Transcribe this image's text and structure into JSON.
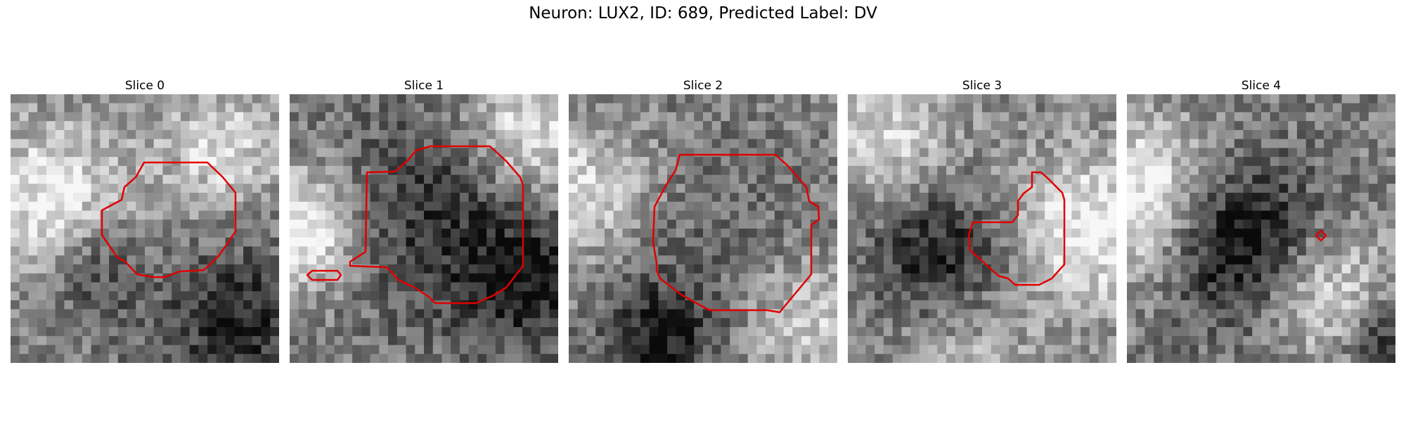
{
  "figure": {
    "title": "Neuron: LUX2, ID: 689, Predicted Label: DV"
  },
  "panels": [
    {
      "title": "Slice 0",
      "seed": 11,
      "image_description": "grayscale noisy microscopy patch; bright left and upper-right, darker lower-right"
    },
    {
      "title": "Slice 1",
      "seed": 23,
      "image_description": "grayscale noisy microscopy patch; bright left edge, dark center body"
    },
    {
      "title": "Slice 2",
      "seed": 37,
      "image_description": "grayscale noisy microscopy patch; medium gray overall"
    },
    {
      "title": "Slice 3",
      "seed": 51,
      "image_description": "grayscale noisy microscopy patch; bright right side, darker center"
    },
    {
      "title": "Slice 4",
      "seed": 67,
      "image_description": "grayscale noisy microscopy patch; bright left, dark blob center-left"
    }
  ],
  "colors": {
    "contour": "#e00000",
    "background": "#ffffff"
  }
}
